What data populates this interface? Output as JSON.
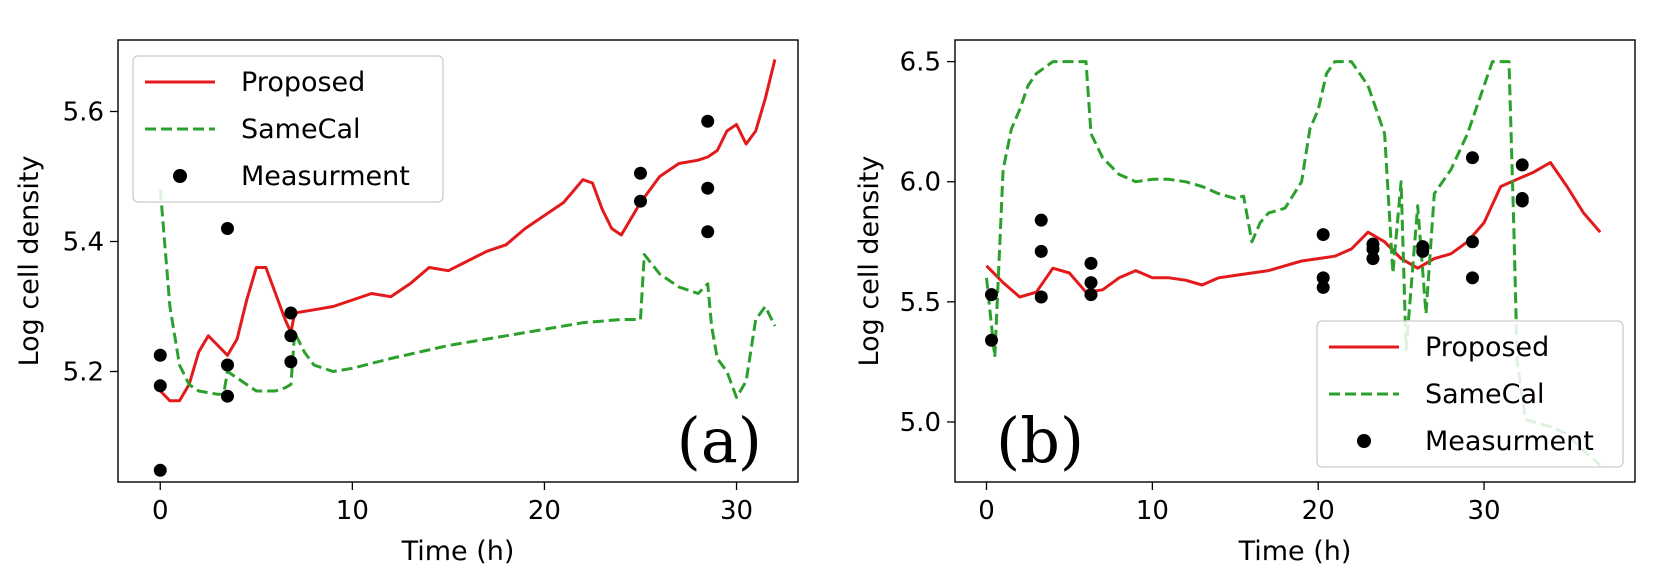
{
  "chart_data": [
    {
      "type": "line",
      "xlabel": "Time (h)",
      "ylabel": "Log cell density",
      "xlim": [
        -2.2,
        33.2
      ],
      "ylim": [
        5.03,
        5.71
      ],
      "xticks": [
        0,
        10,
        20,
        30
      ],
      "yticks": [
        5.2,
        5.4,
        5.6
      ],
      "xtick_labels": [
        "0",
        "10",
        "20",
        "30"
      ],
      "ytick_labels": [
        "5.2",
        "5.4",
        "5.6"
      ],
      "panel_label": "(a)",
      "legend_location": "upper-left",
      "series": [
        {
          "name": "Proposed",
          "style": "solid",
          "color": "#e31a1c",
          "points": [
            [
              0,
              5.17
            ],
            [
              0.5,
              5.155
            ],
            [
              1,
              5.155
            ],
            [
              1.5,
              5.18
            ],
            [
              2,
              5.23
            ],
            [
              2.5,
              5.255
            ],
            [
              3,
              5.24
            ],
            [
              3.5,
              5.225
            ],
            [
              4,
              5.25
            ],
            [
              4.5,
              5.31
            ],
            [
              5,
              5.36
            ],
            [
              5.5,
              5.36
            ],
            [
              6,
              5.32
            ],
            [
              6.5,
              5.28
            ],
            [
              6.8,
              5.26
            ],
            [
              7,
              5.29
            ],
            [
              8,
              5.295
            ],
            [
              9,
              5.3
            ],
            [
              10,
              5.31
            ],
            [
              11,
              5.32
            ],
            [
              12,
              5.315
            ],
            [
              13,
              5.335
            ],
            [
              14,
              5.36
            ],
            [
              15,
              5.355
            ],
            [
              16,
              5.37
            ],
            [
              17,
              5.385
            ],
            [
              18,
              5.395
            ],
            [
              19,
              5.42
            ],
            [
              20,
              5.44
            ],
            [
              21,
              5.46
            ],
            [
              22,
              5.495
            ],
            [
              22.5,
              5.49
            ],
            [
              23,
              5.45
            ],
            [
              23.5,
              5.42
            ],
            [
              24,
              5.41
            ],
            [
              25,
              5.46
            ],
            [
              26,
              5.5
            ],
            [
              27,
              5.52
            ],
            [
              28,
              5.525
            ],
            [
              28.5,
              5.53
            ],
            [
              29,
              5.54
            ],
            [
              29.5,
              5.57
            ],
            [
              30,
              5.58
            ],
            [
              30.5,
              5.55
            ],
            [
              31,
              5.57
            ],
            [
              31.5,
              5.62
            ],
            [
              32,
              5.68
            ]
          ]
        },
        {
          "name": "SameCal",
          "style": "dashed",
          "color": "#2ca02c",
          "points": [
            [
              0,
              5.48
            ],
            [
              0.5,
              5.3
            ],
            [
              1,
              5.21
            ],
            [
              1.5,
              5.18
            ],
            [
              2,
              5.17
            ],
            [
              3,
              5.165
            ],
            [
              3.3,
              5.165
            ],
            [
              3.5,
              5.2
            ],
            [
              4,
              5.19
            ],
            [
              5,
              5.17
            ],
            [
              6,
              5.17
            ],
            [
              6.5,
              5.175
            ],
            [
              6.8,
              5.18
            ],
            [
              7,
              5.26
            ],
            [
              7.5,
              5.23
            ],
            [
              8,
              5.21
            ],
            [
              9,
              5.2
            ],
            [
              10,
              5.205
            ],
            [
              12,
              5.22
            ],
            [
              15,
              5.24
            ],
            [
              18,
              5.255
            ],
            [
              20,
              5.265
            ],
            [
              22,
              5.275
            ],
            [
              24,
              5.28
            ],
            [
              25,
              5.28
            ],
            [
              25.2,
              5.38
            ],
            [
              26,
              5.35
            ],
            [
              27,
              5.33
            ],
            [
              28,
              5.32
            ],
            [
              28.5,
              5.335
            ],
            [
              28.7,
              5.27
            ],
            [
              29,
              5.22
            ],
            [
              29.5,
              5.2
            ],
            [
              30,
              5.16
            ],
            [
              30.5,
              5.185
            ],
            [
              31,
              5.28
            ],
            [
              31.5,
              5.3
            ],
            [
              32,
              5.27
            ]
          ]
        },
        {
          "name": "Measurment",
          "style": "markers",
          "color": "#000000",
          "points": [
            [
              0,
              5.225
            ],
            [
              0,
              5.178
            ],
            [
              0,
              5.048
            ],
            [
              3.5,
              5.42
            ],
            [
              3.5,
              5.21
            ],
            [
              3.5,
              5.162
            ],
            [
              6.8,
              5.29
            ],
            [
              6.8,
              5.255
            ],
            [
              6.8,
              5.215
            ],
            [
              25,
              5.505
            ],
            [
              25,
              5.462
            ],
            [
              28.5,
              5.585
            ],
            [
              28.5,
              5.482
            ],
            [
              28.5,
              5.415
            ]
          ]
        }
      ]
    },
    {
      "type": "line",
      "xlabel": "Time (h)",
      "ylabel": "Log cell density",
      "xlim": [
        -1.9,
        39.1
      ],
      "ylim": [
        4.75,
        6.59
      ],
      "xticks": [
        0,
        10,
        20,
        30
      ],
      "yticks": [
        5.0,
        5.5,
        6.0,
        6.5
      ],
      "xtick_labels": [
        "0",
        "10",
        "20",
        "30"
      ],
      "ytick_labels": [
        "5.0",
        "5.5",
        "6.0",
        "6.5"
      ],
      "panel_label": "(b)",
      "legend_location": "lower-right",
      "series": [
        {
          "name": "Proposed",
          "style": "solid",
          "color": "#e31a1c",
          "points": [
            [
              0,
              5.65
            ],
            [
              1,
              5.58
            ],
            [
              2,
              5.52
            ],
            [
              3,
              5.54
            ],
            [
              4,
              5.64
            ],
            [
              5,
              5.62
            ],
            [
              6,
              5.54
            ],
            [
              7,
              5.55
            ],
            [
              8,
              5.6
            ],
            [
              9,
              5.63
            ],
            [
              10,
              5.6
            ],
            [
              11,
              5.6
            ],
            [
              12,
              5.59
            ],
            [
              13,
              5.57
            ],
            [
              14,
              5.6
            ],
            [
              15,
              5.61
            ],
            [
              16,
              5.62
            ],
            [
              17,
              5.63
            ],
            [
              18,
              5.65
            ],
            [
              19,
              5.67
            ],
            [
              20,
              5.68
            ],
            [
              21,
              5.69
            ],
            [
              22,
              5.72
            ],
            [
              23,
              5.79
            ],
            [
              24,
              5.75
            ],
            [
              25,
              5.68
            ],
            [
              26,
              5.64
            ],
            [
              27,
              5.68
            ],
            [
              28,
              5.7
            ],
            [
              29,
              5.75
            ],
            [
              30,
              5.83
            ],
            [
              31,
              5.98
            ],
            [
              32,
              6.01
            ],
            [
              33,
              6.04
            ],
            [
              34,
              6.08
            ],
            [
              35,
              5.98
            ],
            [
              36,
              5.87
            ],
            [
              37,
              5.79
            ]
          ]
        },
        {
          "name": "SameCal",
          "style": "dashed",
          "color": "#2ca02c",
          "points": [
            [
              0,
              5.6
            ],
            [
              0.5,
              5.27
            ],
            [
              1,
              6.05
            ],
            [
              1.5,
              6.22
            ],
            [
              2,
              6.3
            ],
            [
              2.5,
              6.4
            ],
            [
              3,
              6.45
            ],
            [
              4,
              6.5
            ],
            [
              6,
              6.5
            ],
            [
              6.3,
              6.2
            ],
            [
              7,
              6.1
            ],
            [
              8,
              6.03
            ],
            [
              9,
              6.0
            ],
            [
              10,
              6.01
            ],
            [
              11,
              6.01
            ],
            [
              12,
              6.0
            ],
            [
              13,
              5.98
            ],
            [
              14,
              5.95
            ],
            [
              15,
              5.93
            ],
            [
              15.5,
              5.94
            ],
            [
              16,
              5.75
            ],
            [
              16.5,
              5.83
            ],
            [
              17,
              5.87
            ],
            [
              18,
              5.89
            ],
            [
              19,
              6.0
            ],
            [
              19.5,
              6.22
            ],
            [
              20,
              6.3
            ],
            [
              20.5,
              6.45
            ],
            [
              21,
              6.5
            ],
            [
              22,
              6.5
            ],
            [
              22.5,
              6.45
            ],
            [
              23,
              6.4
            ],
            [
              24,
              6.2
            ],
            [
              24.5,
              5.62
            ],
            [
              25,
              6.0
            ],
            [
              25.3,
              5.3
            ],
            [
              26,
              5.9
            ],
            [
              26.5,
              5.45
            ],
            [
              27,
              5.95
            ],
            [
              28,
              6.05
            ],
            [
              29,
              6.2
            ],
            [
              30,
              6.4
            ],
            [
              30.5,
              6.5
            ],
            [
              31.5,
              6.5
            ],
            [
              31.8,
              5.8
            ],
            [
              32,
              5.25
            ],
            [
              32.5,
              5.01
            ],
            [
              34,
              4.98
            ],
            [
              35,
              4.95
            ],
            [
              36,
              4.88
            ],
            [
              37,
              4.82
            ]
          ]
        },
        {
          "name": "Measurment",
          "style": "markers",
          "color": "#000000",
          "points": [
            [
              0.3,
              5.53
            ],
            [
              0.3,
              5.34
            ],
            [
              3.3,
              5.84
            ],
            [
              3.3,
              5.71
            ],
            [
              3.3,
              5.52
            ],
            [
              6.3,
              5.66
            ],
            [
              6.3,
              5.58
            ],
            [
              6.3,
              5.53
            ],
            [
              20.3,
              5.78
            ],
            [
              20.3,
              5.6
            ],
            [
              20.3,
              5.56
            ],
            [
              23.3,
              5.74
            ],
            [
              23.3,
              5.72
            ],
            [
              23.3,
              5.68
            ],
            [
              26.3,
              5.73
            ],
            [
              26.3,
              5.71
            ],
            [
              29.3,
              6.1
            ],
            [
              29.3,
              5.75
            ],
            [
              29.3,
              5.6
            ],
            [
              32.3,
              6.07
            ],
            [
              32.3,
              5.93
            ],
            [
              32.3,
              5.92
            ]
          ]
        }
      ]
    }
  ]
}
